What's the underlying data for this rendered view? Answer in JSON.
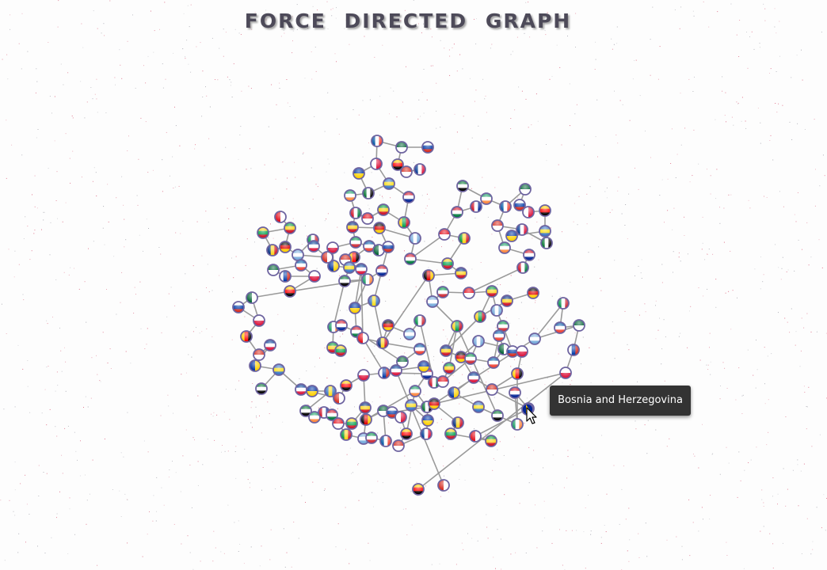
{
  "title": "FORCE DIRECTED GRAPH",
  "tooltip": {
    "text": "Bosnia and Herzegovina"
  },
  "colors": {
    "link": "#9a9a9a",
    "node_border": "#6e64a0",
    "title": "#4d4a59",
    "tooltip_bg": "#333333",
    "speckle": "#d2385a"
  },
  "graph": {
    "node_icon": "flag-icon",
    "node_count": 168
  }
}
